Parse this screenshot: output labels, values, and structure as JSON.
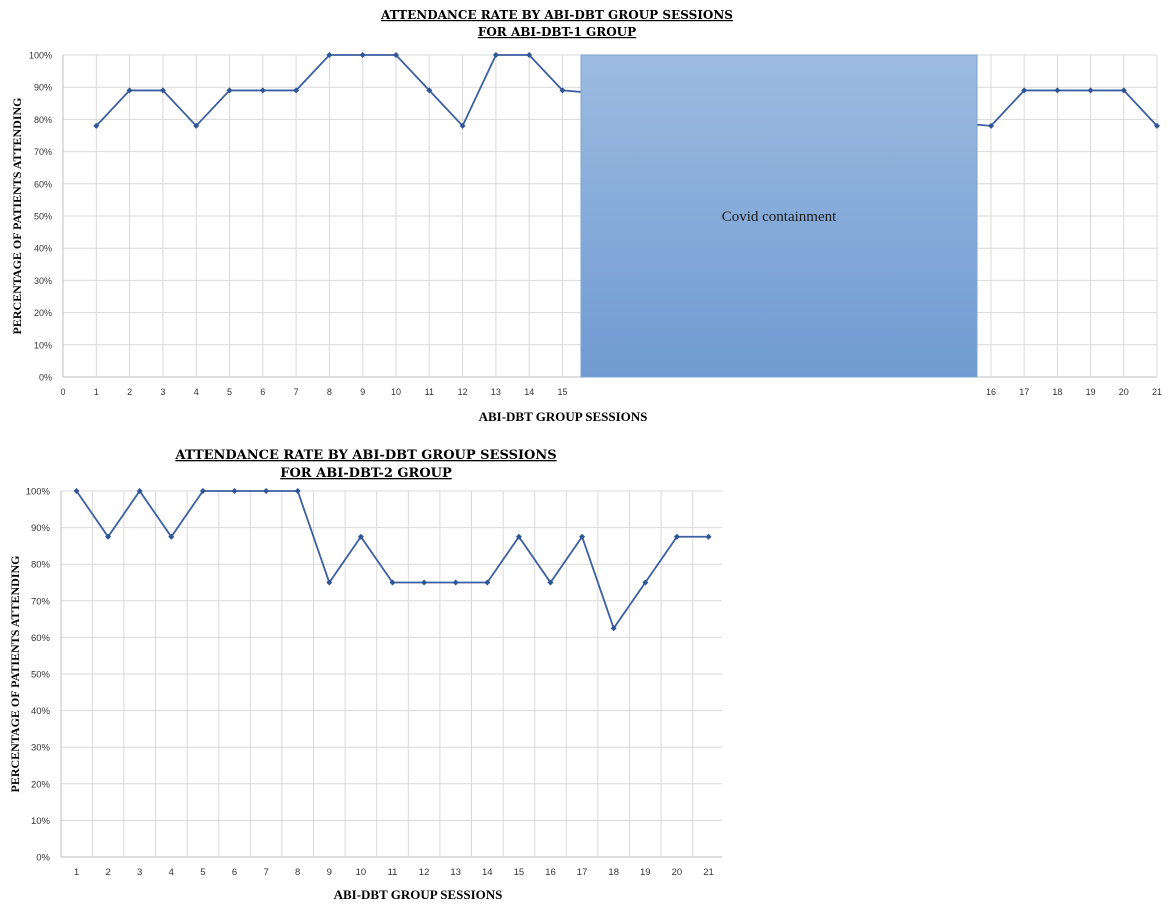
{
  "chart_data": [
    {
      "type": "line",
      "title_line1": "ATTENDANCE RATE BY ABI-DBT GROUP SESSIONS",
      "title_line2": "FOR ABI-DBT-1 GROUP",
      "xlabel": "ABI-DBT GROUP SESSIONS",
      "ylabel": "PERCENTAGE OF PATIENTS ATTENDING",
      "ylim": [
        0,
        100
      ],
      "yticks": [
        "0%",
        "10%",
        "20%",
        "30%",
        "40%",
        "50%",
        "60%",
        "70%",
        "80%",
        "90%",
        "100%"
      ],
      "xticks": [
        "0",
        "1",
        "2",
        "3",
        "4",
        "5",
        "6",
        "7",
        "8",
        "9",
        "10",
        "11",
        "12",
        "13",
        "14",
        "15",
        "16",
        "17",
        "18",
        "19",
        "20",
        "21"
      ],
      "x": [
        1,
        2,
        3,
        4,
        5,
        6,
        7,
        8,
        9,
        10,
        11,
        12,
        13,
        14,
        15,
        16,
        17,
        18,
        19,
        20,
        21
      ],
      "values": [
        78,
        89,
        89,
        78,
        89,
        89,
        89,
        100,
        100,
        100,
        89,
        78,
        100,
        100,
        89,
        78,
        89,
        89,
        89,
        89,
        78
      ],
      "grid": true,
      "annotation": {
        "text": "Covid containment",
        "color": "#8fb0d9",
        "between_sessions": [
          15,
          16
        ]
      },
      "colors": {
        "line": "#3b5fa0",
        "marker": "#2f5597"
      }
    },
    {
      "type": "line",
      "title_line1": "ATTENDANCE RATE BY ABI-DBT GROUP SESSIONS",
      "title_line2": "FOR ABI-DBT-2 GROUP",
      "xlabel": "ABI-DBT GROUP SESSIONS",
      "ylabel": "PERCENTAGE OF PATIENTS ATTENDING",
      "ylim": [
        0,
        100
      ],
      "yticks": [
        "0%",
        "10%",
        "20%",
        "30%",
        "40%",
        "50%",
        "60%",
        "70%",
        "80%",
        "90%",
        "100%"
      ],
      "xticks": [
        "1",
        "2",
        "3",
        "4",
        "5",
        "6",
        "7",
        "8",
        "9",
        "10",
        "11",
        "12",
        "13",
        "14",
        "15",
        "16",
        "17",
        "18",
        "19",
        "20",
        "21"
      ],
      "x": [
        1,
        2,
        3,
        4,
        5,
        6,
        7,
        8,
        9,
        10,
        11,
        12,
        13,
        14,
        15,
        16,
        17,
        18,
        19,
        20,
        21
      ],
      "values": [
        100,
        87.5,
        100,
        87.5,
        100,
        100,
        100,
        100,
        75,
        87.5,
        75,
        75,
        75,
        75,
        87.5,
        75,
        87.5,
        62.5,
        75,
        87.5,
        87.5
      ],
      "grid": true,
      "colors": {
        "line": "#3b5fa0",
        "marker": "#2f5597"
      }
    }
  ]
}
